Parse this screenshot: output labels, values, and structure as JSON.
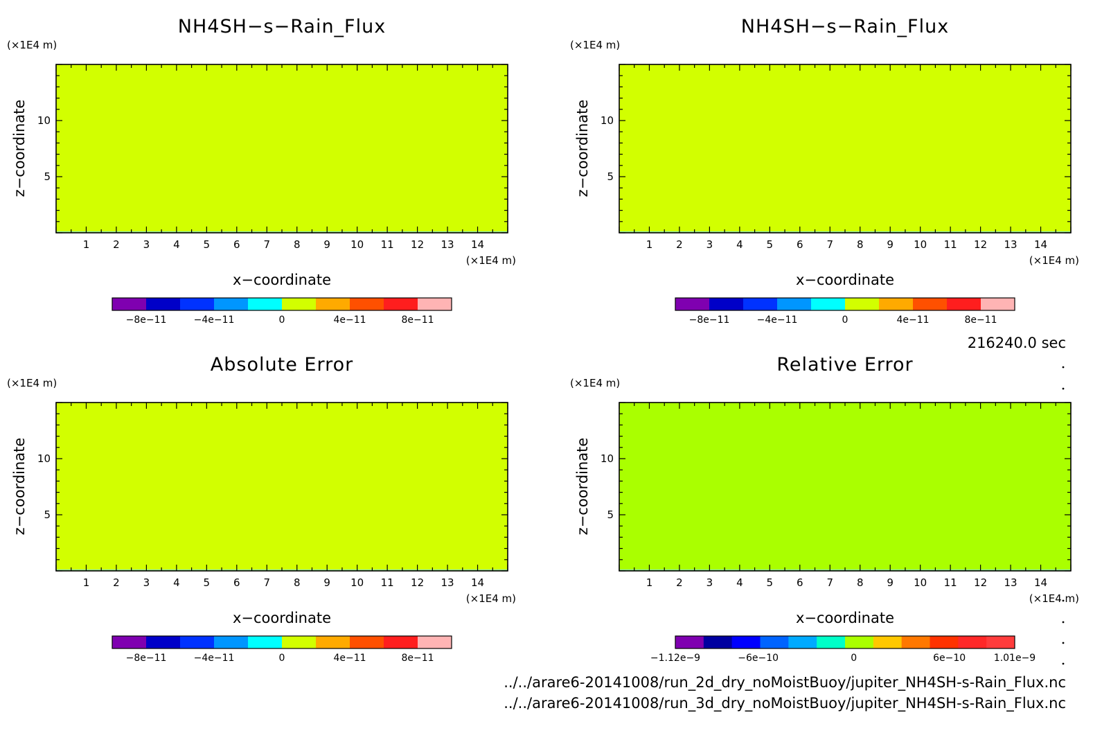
{
  "info": {
    "time": "216240.0 sec",
    "file1": "../../arare6-20141008/run_2d_dry_noMoistBuoy/jupiter_NH4SH-s-Rain_Flux.nc",
    "file2": "../../arare6-20141008/run_3d_dry_noMoistBuoy/jupiter_NH4SH-s-Rain_Flux.nc"
  },
  "chart_data": [
    {
      "type": "heatmap",
      "title": "NH4SH−s−Rain_Flux",
      "xlabel": "x−coordinate",
      "ylabel": "z−coordinate",
      "xunit": "(×1E4 m)",
      "yunit": "(×1E4 m)",
      "xlim": [
        0,
        15
      ],
      "ylim": [
        0,
        15
      ],
      "xticks": [
        "1",
        "2",
        "3",
        "4",
        "5",
        "6",
        "7",
        "8",
        "9",
        "10",
        "11",
        "12",
        "13",
        "14"
      ],
      "yticks": [
        "5",
        "10"
      ],
      "field_color": "#d2ff00",
      "field_value": 0,
      "colorbar": {
        "colors": [
          "#7f00b0",
          "#0000c8",
          "#0032ff",
          "#0096ff",
          "#00ffff",
          "#d2ff00",
          "#ffaa00",
          "#ff5000",
          "#ff1e1e",
          "#ffb4b4"
        ],
        "ticks": [
          {
            "label": "−8e−11",
            "value": -8e-11
          },
          {
            "label": "−4e−11",
            "value": -4e-11
          },
          {
            "label": "0",
            "value": 0
          },
          {
            "label": "4e−11",
            "value": 4e-11
          },
          {
            "label": "8e−11",
            "value": 8e-11
          }
        ],
        "range": [
          -1e-10,
          1e-10
        ]
      }
    },
    {
      "type": "heatmap",
      "title": "NH4SH−s−Rain_Flux",
      "xlabel": "x−coordinate",
      "ylabel": "z−coordinate",
      "xunit": "(×1E4 m)",
      "yunit": "(×1E4 m)",
      "xlim": [
        0,
        15
      ],
      "ylim": [
        0,
        15
      ],
      "xticks": [
        "1",
        "2",
        "3",
        "4",
        "5",
        "6",
        "7",
        "8",
        "9",
        "10",
        "11",
        "12",
        "13",
        "14"
      ],
      "yticks": [
        "5",
        "10"
      ],
      "field_color": "#d2ff00",
      "field_value": 0,
      "colorbar": {
        "colors": [
          "#7f00b0",
          "#0000c8",
          "#0032ff",
          "#0096ff",
          "#00ffff",
          "#d2ff00",
          "#ffaa00",
          "#ff5000",
          "#ff1e1e",
          "#ffb4b4"
        ],
        "ticks": [
          {
            "label": "−8e−11",
            "value": -8e-11
          },
          {
            "label": "−4e−11",
            "value": -4e-11
          },
          {
            "label": "0",
            "value": 0
          },
          {
            "label": "4e−11",
            "value": 4e-11
          },
          {
            "label": "8e−11",
            "value": 8e-11
          }
        ],
        "range": [
          -1e-10,
          1e-10
        ]
      }
    },
    {
      "type": "heatmap",
      "title": "Absolute Error",
      "xlabel": "x−coordinate",
      "ylabel": "z−coordinate",
      "xunit": "(×1E4 m)",
      "yunit": "(×1E4 m)",
      "xlim": [
        0,
        15
      ],
      "ylim": [
        0,
        15
      ],
      "xticks": [
        "1",
        "2",
        "3",
        "4",
        "5",
        "6",
        "7",
        "8",
        "9",
        "10",
        "11",
        "12",
        "13",
        "14"
      ],
      "yticks": [
        "5",
        "10"
      ],
      "field_color": "#d2ff00",
      "field_value": 0,
      "colorbar": {
        "colors": [
          "#7f00b0",
          "#0000c8",
          "#0032ff",
          "#0096ff",
          "#00ffff",
          "#d2ff00",
          "#ffaa00",
          "#ff5000",
          "#ff1e1e",
          "#ffb4b4"
        ],
        "ticks": [
          {
            "label": "−8e−11",
            "value": -8e-11
          },
          {
            "label": "−4e−11",
            "value": -4e-11
          },
          {
            "label": "0",
            "value": 0
          },
          {
            "label": "4e−11",
            "value": 4e-11
          },
          {
            "label": "8e−11",
            "value": 8e-11
          }
        ],
        "range": [
          -1e-10,
          1e-10
        ]
      }
    },
    {
      "type": "heatmap",
      "title": "Relative Error",
      "xlabel": "x−coordinate",
      "ylabel": "z−coordinate",
      "xunit": "(×1E4 m)",
      "yunit": "(×1E4 m)",
      "xlim": [
        0,
        15
      ],
      "ylim": [
        0,
        15
      ],
      "xticks": [
        "1",
        "2",
        "3",
        "4",
        "5",
        "6",
        "7",
        "8",
        "9",
        "10",
        "11",
        "12",
        "13",
        "14"
      ],
      "yticks": [
        "5",
        "10"
      ],
      "field_color": "#aaff00",
      "field_value": 0,
      "colorbar": {
        "colors": [
          "#7f00b0",
          "#0000a0",
          "#0000ff",
          "#0064ff",
          "#00aaff",
          "#00ffc8",
          "#aaff00",
          "#ffc800",
          "#ff7800",
          "#ff3200",
          "#ff2828",
          "#ff3c3c"
        ],
        "ticks": [
          {
            "label": "−1.12e−9",
            "value": -1.12e-09
          },
          {
            "label": "−6e−10",
            "value": -6e-10
          },
          {
            "label": "0",
            "value": 0
          },
          {
            "label": "6e−10",
            "value": 6e-10
          },
          {
            "label": "1.01e−9",
            "value": 1.01e-09
          }
        ],
        "range": [
          -1.12e-09,
          1.01e-09
        ]
      }
    }
  ]
}
